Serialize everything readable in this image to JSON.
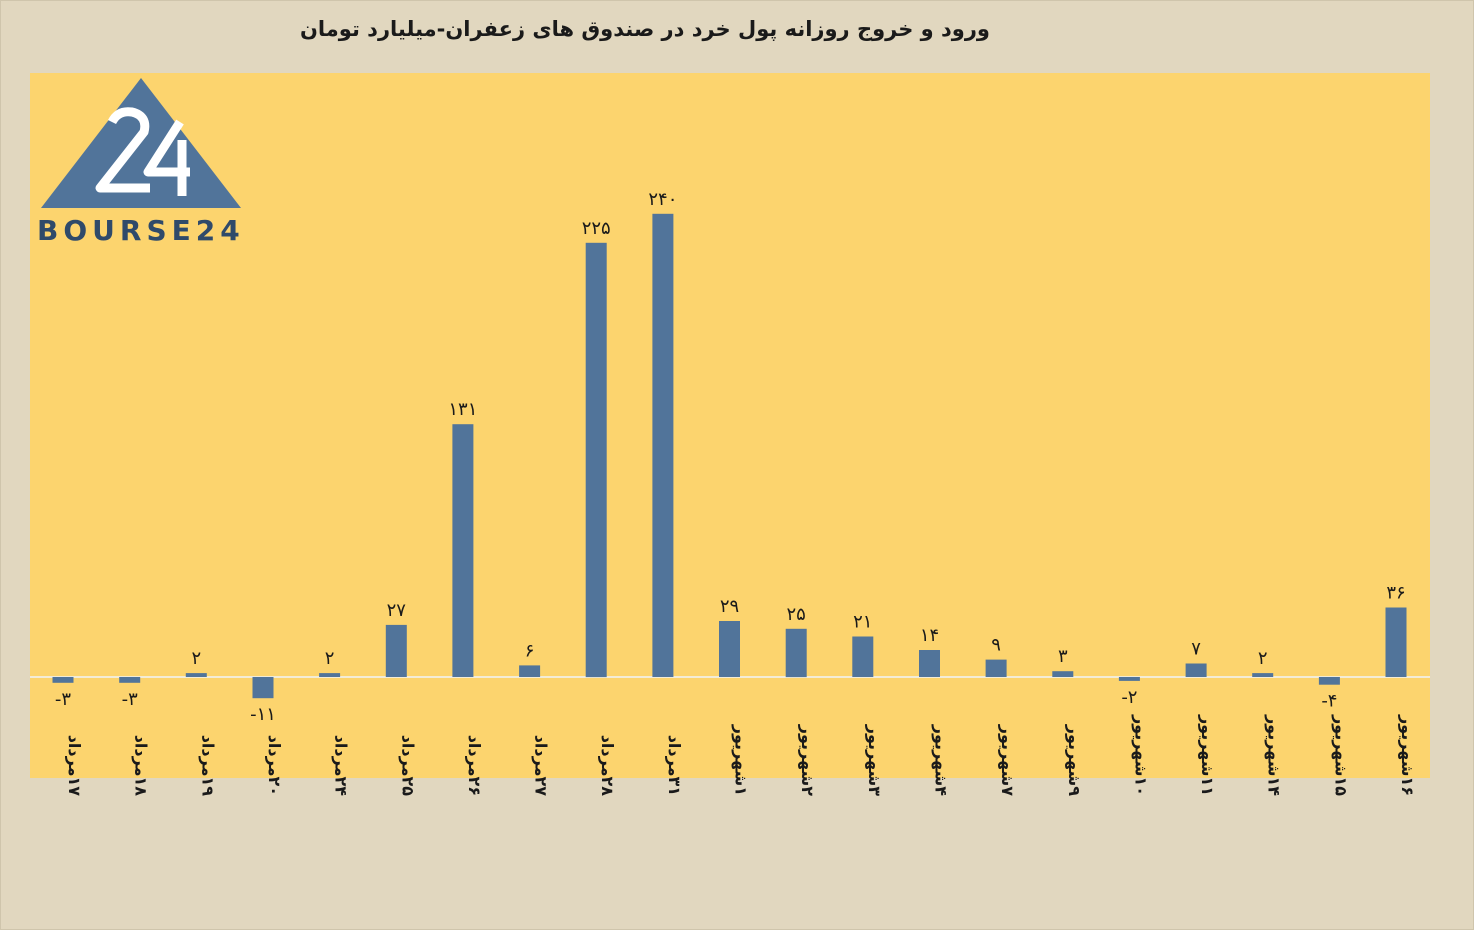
{
  "chart_data": {
    "type": "bar",
    "title": "ورود و خروج روزانه پول خرد در صندوق های زعفران-میلیارد تومان",
    "categories": [
      "۱۷مرداد",
      "۱۸مرداد",
      "۱۹مرداد",
      "۲۰مرداد",
      "۲۴مرداد",
      "۲۵مرداد",
      "۲۶مرداد",
      "۲۷مرداد",
      "۲۸مرداد",
      "۳۱مرداد",
      "۱شهریور",
      "۲شهریور",
      "۳شهریور",
      "۴شهریور",
      "۷شهریور",
      "۹شهریور",
      "۱۰شهریور",
      "۱۱شهریور",
      "۱۴شهریور",
      "۱۵شهریور",
      "۱۶شهریور"
    ],
    "values": [
      -3,
      -3,
      2,
      -11,
      2,
      27,
      131,
      6,
      225,
      240,
      29,
      25,
      21,
      14,
      9,
      3,
      -2,
      7,
      2,
      -4,
      36
    ],
    "value_labels": [
      "-۳",
      "-۳",
      "۲",
      "-۱۱",
      "۲",
      "۲۷",
      "۱۳۱",
      "۶",
      "۲۲۵",
      "۲۴۰",
      "۲۹",
      "۲۵",
      "۲۱",
      "۱۴",
      "۹",
      "۳",
      "-۲",
      "۷",
      "۲",
      "-۴",
      "۳۶"
    ],
    "bar_color": "#51749a",
    "plot_background": "#fcd46e",
    "page_background": "#e1d7bf",
    "grid": false,
    "legend": "none"
  },
  "logo": {
    "text": "BOURSE24",
    "mark": "24",
    "color": "#51749a"
  }
}
